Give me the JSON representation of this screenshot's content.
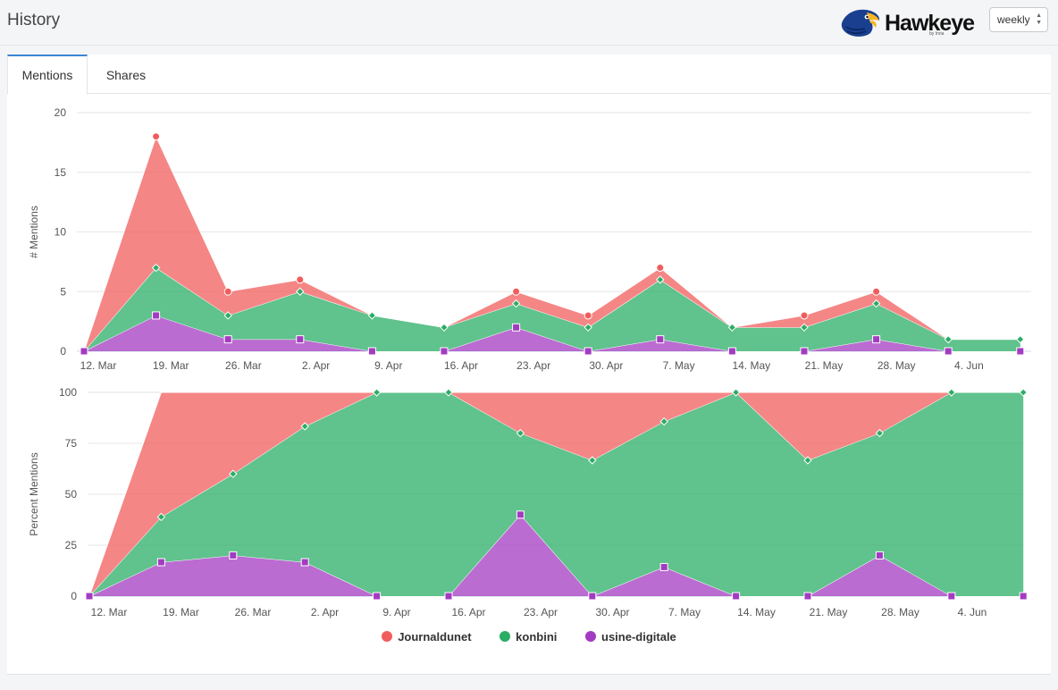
{
  "page": {
    "title": "History"
  },
  "brand": {
    "name": "Hawkeye",
    "sub": "by Inria"
  },
  "period_select": {
    "value": "weekly"
  },
  "tabs": [
    {
      "label": "Mentions"
    },
    {
      "label": "Shares"
    }
  ],
  "colors": {
    "journaldunet": "#f15d5d",
    "konbini": "#2bad65",
    "usine": "#a33bc2",
    "tab_accent": "#3a86d6"
  },
  "chart_data": [
    {
      "type": "area",
      "stacked": true,
      "ylabel": "# Mentions",
      "ylim": [
        0,
        20
      ],
      "yticks": [
        0,
        5,
        10,
        15,
        20
      ],
      "x": [
        "12. Mar",
        "19. Mar",
        "26. Mar",
        "2. Apr",
        "9. Apr",
        "16. Apr",
        "23. Apr",
        "30. Apr",
        "7. May",
        "14. May",
        "21. May",
        "28. May",
        "4. Jun",
        ""
      ],
      "xtick_labels": [
        "12. Mar",
        "19. Mar",
        "26. Mar",
        "2. Apr",
        "9. Apr",
        "16. Apr",
        "23. Apr",
        "30. Apr",
        "7. May",
        "14. May",
        "21. May",
        "28. May",
        "4. Jun"
      ],
      "series": [
        {
          "name": "usine-digitale",
          "values": [
            0,
            3,
            1,
            1,
            0,
            0,
            2,
            0,
            1,
            0,
            0,
            1,
            0,
            0
          ]
        },
        {
          "name": "konbini",
          "values": [
            0,
            4,
            2,
            4,
            3,
            2,
            2,
            2,
            5,
            2,
            2,
            3,
            1,
            1
          ]
        },
        {
          "name": "Journaldunet",
          "values": [
            0,
            11,
            2,
            1,
            0,
            0,
            1,
            1,
            1,
            0,
            1,
            1,
            0,
            0
          ]
        }
      ],
      "grid": true
    },
    {
      "type": "area",
      "stacked": "percent",
      "ylabel": "Percent Mentions",
      "ylim": [
        0,
        100
      ],
      "yticks": [
        0,
        25,
        50,
        75,
        100
      ],
      "x": [
        "12. Mar",
        "19. Mar",
        "26. Mar",
        "2. Apr",
        "9. Apr",
        "16. Apr",
        "23. Apr",
        "30. Apr",
        "7. May",
        "14. May",
        "21. May",
        "28. May",
        "4. Jun",
        ""
      ],
      "xtick_labels": [
        "12. Mar",
        "19. Mar",
        "26. Mar",
        "2. Apr",
        "9. Apr",
        "16. Apr",
        "23. Apr",
        "30. Apr",
        "7. May",
        "14. May",
        "21. May",
        "28. May",
        "4. Jun"
      ],
      "series": [
        {
          "name": "usine-digitale",
          "values": [
            0,
            3,
            1,
            1,
            0,
            0,
            2,
            0,
            1,
            0,
            0,
            1,
            0,
            0
          ]
        },
        {
          "name": "konbini",
          "values": [
            0,
            4,
            2,
            4,
            3,
            2,
            2,
            2,
            5,
            2,
            2,
            3,
            1,
            1
          ]
        },
        {
          "name": "Journaldunet",
          "values": [
            0,
            11,
            2,
            1,
            0,
            0,
            1,
            1,
            1,
            0,
            1,
            1,
            0,
            0
          ]
        }
      ],
      "grid": true
    }
  ],
  "legend": [
    {
      "label": "Journaldunet",
      "color": "#f15d5d"
    },
    {
      "label": "konbini",
      "color": "#2bad65"
    },
    {
      "label": "usine-digitale",
      "color": "#a33bc2"
    }
  ]
}
